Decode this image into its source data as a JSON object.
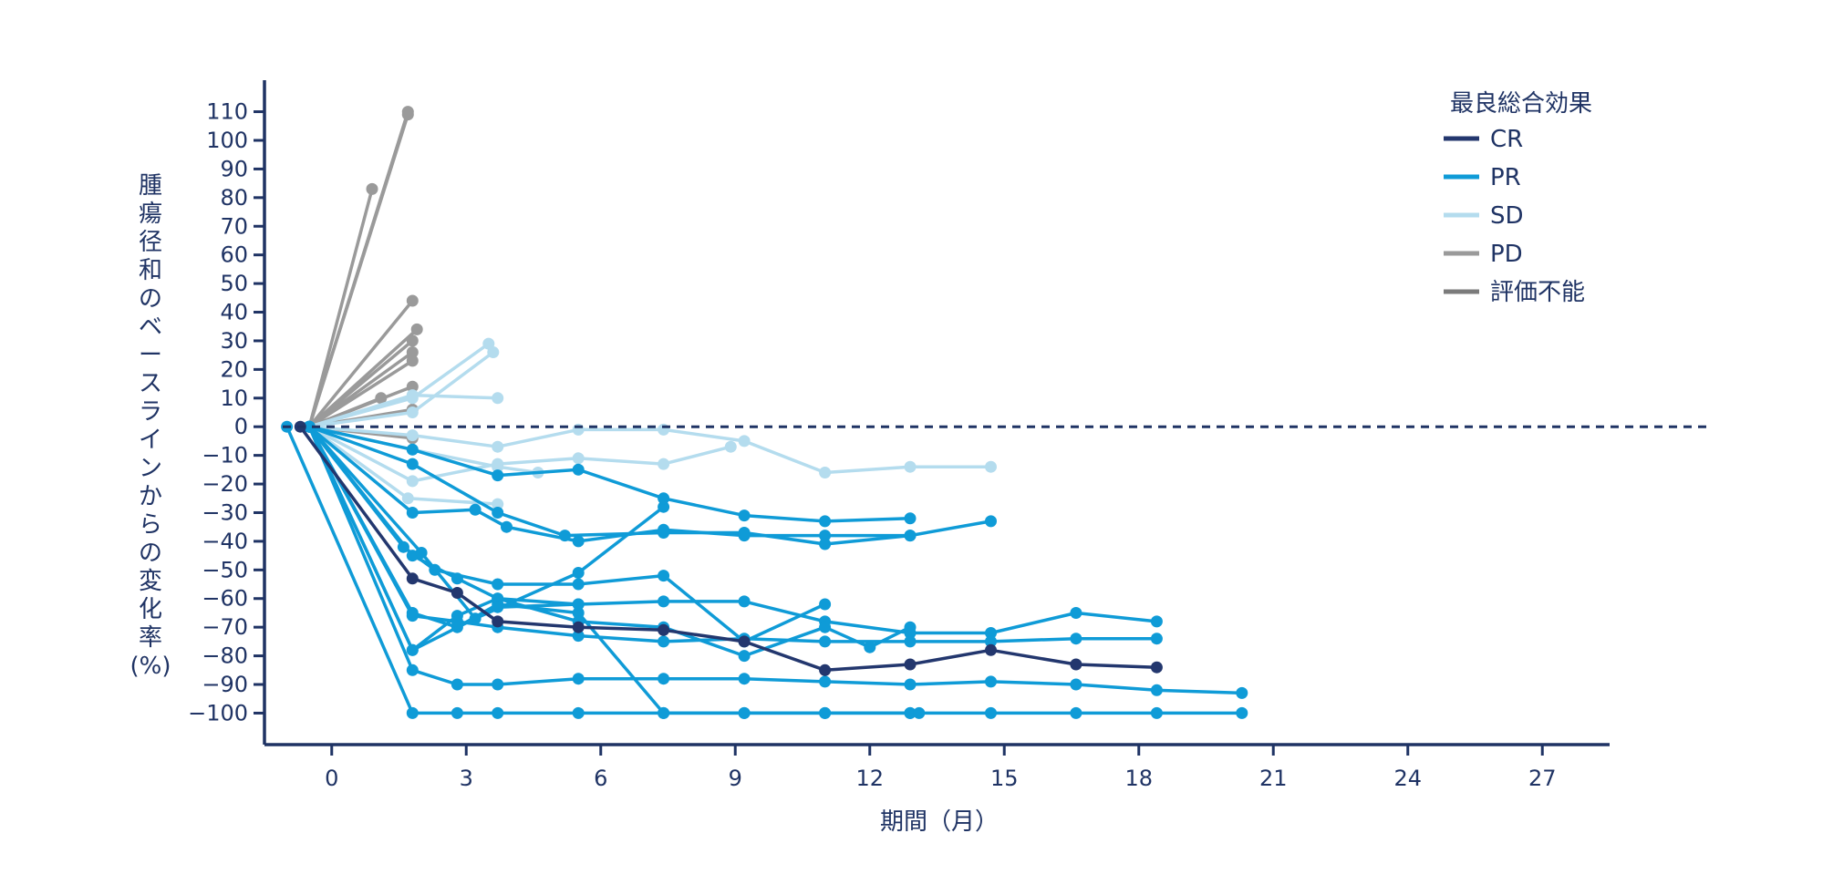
{
  "chart_data": {
    "type": "line",
    "xlabel": "期間（月）",
    "ylabel_chars": [
      "腫",
      "瘍",
      "径",
      "和",
      "の",
      "ベ",
      "ー",
      "ス",
      "ラ",
      "イ",
      "ン",
      "か",
      "ら",
      "の",
      "変",
      "化",
      "率",
      "(%)"
    ],
    "xticks": [
      0,
      3,
      6,
      9,
      12,
      15,
      18,
      21,
      24,
      27
    ],
    "yticks": [
      110,
      100,
      90,
      80,
      70,
      60,
      50,
      40,
      30,
      20,
      10,
      0,
      -10,
      -20,
      -30,
      -40,
      -50,
      -60,
      -70,
      -80,
      -90,
      -100
    ],
    "xlim": [
      -1.5,
      28.5
    ],
    "ylim": [
      -111,
      121
    ],
    "reference_line": 0,
    "legend": {
      "title": "最良総合効果",
      "placement": "top-right",
      "entries": [
        {
          "key": "CR",
          "label": "CR",
          "color": "#23376e"
        },
        {
          "key": "PR",
          "label": "PR",
          "color": "#0f9bd7"
        },
        {
          "key": "SD",
          "label": "SD",
          "color": "#b4dcee"
        },
        {
          "key": "PD",
          "label": "PD",
          "color": "#9a9a9a"
        },
        {
          "key": "NE",
          "label": "評価不能",
          "color": "#7b7b7b"
        }
      ]
    },
    "colors": {
      "CR": "#23376e",
      "PR": "#0f9bd7",
      "SD": "#b4dcee",
      "PD": "#9a9a9a",
      "NE": "#7b7b7b",
      "axis": "#1f3364"
    },
    "series": [
      {
        "group": "PR",
        "points": [
          [
            -1,
            0
          ],
          [
            1.8,
            -100
          ],
          [
            2.8,
            -100
          ],
          [
            3.7,
            -100
          ],
          [
            5.5,
            -100
          ],
          [
            7.4,
            -100
          ],
          [
            9.2,
            -100
          ],
          [
            11.0,
            -100
          ],
          [
            12.9,
            -100
          ],
          [
            14.7,
            -100
          ],
          [
            16.6,
            -100
          ],
          [
            18.4,
            -100
          ],
          [
            20.3,
            -100
          ]
        ]
      },
      {
        "group": "PR",
        "points": [
          [
            -0.5,
            0
          ],
          [
            1.8,
            -85
          ],
          [
            2.8,
            -90
          ],
          [
            3.7,
            -90
          ],
          [
            5.5,
            -88
          ],
          [
            7.4,
            -88
          ],
          [
            9.2,
            -88
          ],
          [
            11.0,
            -89
          ],
          [
            12.9,
            -90
          ],
          [
            14.7,
            -89
          ],
          [
            16.6,
            -90
          ],
          [
            18.4,
            -92
          ],
          [
            20.3,
            -93
          ]
        ]
      },
      {
        "group": "PR",
        "points": [
          [
            -0.5,
            0
          ],
          [
            1.8,
            -65
          ],
          [
            2.8,
            -70
          ],
          [
            3.7,
            -62
          ],
          [
            5.5,
            -65
          ],
          [
            7.4,
            -100
          ],
          [
            9.2,
            -100
          ],
          [
            11.0,
            -100
          ],
          [
            12.9,
            -100
          ],
          [
            13.1,
            -100
          ]
        ]
      },
      {
        "group": "PR",
        "points": [
          [
            -0.5,
            0
          ],
          [
            1.8,
            -78
          ],
          [
            2.8,
            -66
          ],
          [
            3.7,
            -60
          ],
          [
            5.5,
            -62
          ],
          [
            7.4,
            -61
          ],
          [
            9.2,
            -61
          ],
          [
            11.0,
            -68
          ],
          [
            12.9,
            -72
          ],
          [
            14.7,
            -72
          ],
          [
            16.6,
            -65
          ],
          [
            18.4,
            -68
          ]
        ]
      },
      {
        "group": "PR",
        "points": [
          [
            -0.5,
            0
          ],
          [
            1.6,
            -42
          ],
          [
            2.3,
            -50
          ],
          [
            3.7,
            -55
          ],
          [
            5.5,
            -55
          ],
          [
            7.4,
            -52
          ],
          [
            9.2,
            -75
          ],
          [
            11.0,
            -62
          ]
        ]
      },
      {
        "group": "PR",
        "points": [
          [
            -0.5,
            0
          ],
          [
            1.8,
            -66
          ],
          [
            2.8,
            -68
          ],
          [
            3.7,
            -70
          ],
          [
            5.5,
            -73
          ],
          [
            7.4,
            -75
          ],
          [
            9.2,
            -74
          ],
          [
            11.0,
            -75
          ],
          [
            12.9,
            -75
          ],
          [
            14.7,
            -75
          ],
          [
            16.6,
            -74
          ],
          [
            18.4,
            -74
          ]
        ]
      },
      {
        "group": "PR",
        "points": [
          [
            -0.5,
            0
          ],
          [
            1.8,
            -45
          ],
          [
            2.8,
            -53
          ],
          [
            3.7,
            -60
          ],
          [
            5.5,
            -68
          ],
          [
            7.4,
            -70
          ],
          [
            9.2,
            -80
          ],
          [
            11.0,
            -70
          ],
          [
            12.0,
            -77
          ],
          [
            12.9,
            -70
          ]
        ]
      },
      {
        "group": "PR",
        "points": [
          [
            -0.5,
            0
          ],
          [
            2.0,
            -44
          ],
          [
            3.2,
            -67
          ],
          [
            5.5,
            -51
          ],
          [
            7.4,
            -28
          ]
        ]
      },
      {
        "group": "PR",
        "points": [
          [
            -0.5,
            0
          ],
          [
            1.8,
            -30
          ],
          [
            3.2,
            -29
          ],
          [
            3.9,
            -35
          ],
          [
            5.5,
            -40
          ],
          [
            7.4,
            -36
          ],
          [
            9.2,
            -38
          ],
          [
            11.0,
            -38
          ],
          [
            12.9,
            -38
          ]
        ]
      },
      {
        "group": "PR",
        "points": [
          [
            -0.5,
            0
          ],
          [
            1.8,
            -13
          ],
          [
            3.7,
            -30
          ],
          [
            5.2,
            -38
          ],
          [
            7.4,
            -37
          ],
          [
            9.2,
            -37
          ],
          [
            11.0,
            -41
          ],
          [
            12.9,
            -38
          ],
          [
            14.7,
            -33
          ]
        ]
      },
      {
        "group": "PR",
        "points": [
          [
            -0.5,
            0
          ],
          [
            1.8,
            -8
          ],
          [
            3.7,
            -17
          ],
          [
            5.5,
            -15
          ],
          [
            7.4,
            -25
          ],
          [
            9.2,
            -31
          ],
          [
            11.0,
            -33
          ],
          [
            12.9,
            -32
          ]
        ]
      },
      {
        "group": "PR",
        "points": [
          [
            -0.5,
            0
          ],
          [
            1.8,
            -78
          ],
          [
            3.7,
            -63
          ],
          [
            5.5,
            -62
          ]
        ]
      },
      {
        "group": "CR",
        "points": [
          [
            -0.7,
            0
          ],
          [
            1.8,
            -53
          ],
          [
            2.8,
            -58
          ],
          [
            3.7,
            -68
          ],
          [
            5.5,
            -70
          ],
          [
            7.4,
            -71
          ],
          [
            9.2,
            -75
          ],
          [
            11.0,
            -85
          ],
          [
            12.9,
            -83
          ],
          [
            14.7,
            -78
          ],
          [
            16.6,
            -83
          ],
          [
            18.4,
            -84
          ]
        ]
      },
      {
        "group": "SD",
        "points": [
          [
            -0.5,
            0
          ],
          [
            1.8,
            -3
          ],
          [
            3.7,
            -7
          ],
          [
            5.5,
            -1
          ],
          [
            7.4,
            -1
          ],
          [
            9.2,
            -5
          ],
          [
            11.0,
            -16
          ],
          [
            12.9,
            -14
          ],
          [
            14.7,
            -14
          ]
        ]
      },
      {
        "group": "SD",
        "points": [
          [
            -0.5,
            0
          ],
          [
            1.8,
            -19
          ],
          [
            3.7,
            -13
          ],
          [
            5.5,
            -11
          ],
          [
            7.4,
            -13
          ],
          [
            8.9,
            -7
          ]
        ]
      },
      {
        "group": "SD",
        "points": [
          [
            -0.5,
            0
          ],
          [
            1.8,
            -8
          ],
          [
            3.7,
            -14
          ],
          [
            4.6,
            -16
          ]
        ]
      },
      {
        "group": "SD",
        "points": [
          [
            -0.5,
            0
          ],
          [
            1.7,
            -25
          ],
          [
            3.7,
            -27
          ]
        ]
      },
      {
        "group": "SD",
        "points": [
          [
            -0.5,
            0
          ],
          [
            1.8,
            11
          ],
          [
            3.7,
            10
          ]
        ]
      },
      {
        "group": "SD",
        "points": [
          [
            -0.5,
            0
          ],
          [
            1.8,
            10
          ],
          [
            3.5,
            29
          ]
        ]
      },
      {
        "group": "SD",
        "points": [
          [
            -0.5,
            0
          ],
          [
            1.8,
            5
          ],
          [
            3.6,
            26
          ]
        ]
      },
      {
        "group": "PD",
        "points": [
          [
            -0.5,
            0
          ],
          [
            1.7,
            110
          ]
        ]
      },
      {
        "group": "PD",
        "points": [
          [
            -0.5,
            0
          ],
          [
            1.7,
            109
          ]
        ]
      },
      {
        "group": "PD",
        "points": [
          [
            -0.5,
            0
          ],
          [
            0.9,
            83
          ]
        ]
      },
      {
        "group": "PD",
        "points": [
          [
            -0.5,
            0
          ],
          [
            1.8,
            44
          ]
        ]
      },
      {
        "group": "PD",
        "points": [
          [
            -0.5,
            0
          ],
          [
            1.9,
            34
          ]
        ]
      },
      {
        "group": "PD",
        "points": [
          [
            -0.5,
            0
          ],
          [
            1.8,
            30
          ]
        ]
      },
      {
        "group": "PD",
        "points": [
          [
            -0.5,
            0
          ],
          [
            1.8,
            26
          ]
        ]
      },
      {
        "group": "PD",
        "points": [
          [
            -0.5,
            0
          ],
          [
            1.8,
            23
          ]
        ]
      },
      {
        "group": "PD",
        "points": [
          [
            -0.5,
            0
          ],
          [
            1.8,
            14
          ]
        ]
      },
      {
        "group": "PD",
        "points": [
          [
            -0.5,
            0
          ],
          [
            1.1,
            10
          ]
        ]
      },
      {
        "group": "PD",
        "points": [
          [
            -0.5,
            0
          ],
          [
            1.8,
            6
          ]
        ]
      },
      {
        "group": "PD",
        "points": [
          [
            -0.5,
            0
          ],
          [
            1.8,
            -4
          ]
        ]
      }
    ]
  }
}
